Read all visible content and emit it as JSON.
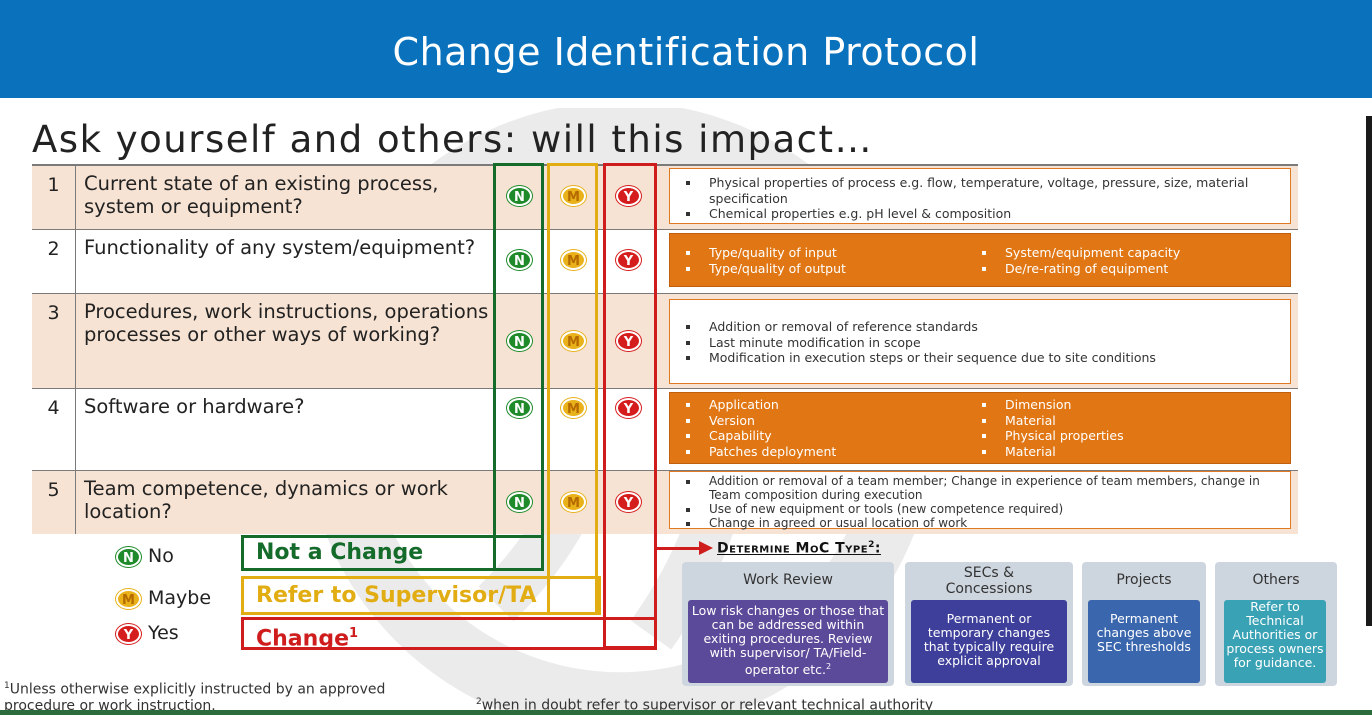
{
  "banner": {
    "title": "Change Identification Protocol"
  },
  "heading": "Ask yourself and others: will this impact…",
  "badges": {
    "n": "N",
    "m": "M",
    "y": "Y"
  },
  "rows": [
    {
      "num": "1",
      "question": "Current state of an existing process, system or equipment?",
      "bullets": [
        "Physical properties of process e.g. flow, temperature, voltage, pressure, size, material specification",
        "Chemical properties e.g. pH level & composition"
      ]
    },
    {
      "num": "2",
      "question": "Functionality of any system/equipment?",
      "bullets_left": [
        "Type/quality of input",
        "Type/quality of output"
      ],
      "bullets_right": [
        "System/equipment capacity",
        "De/re-rating of equipment"
      ]
    },
    {
      "num": "3",
      "question": "Procedures, work instructions, operations processes or other ways of working?",
      "bullets": [
        "Addition or removal of reference standards",
        "Last minute modification in scope",
        "Modification in execution steps or their sequence due to site conditions"
      ]
    },
    {
      "num": "4",
      "question": "Software or hardware?",
      "bullets_left": [
        "Application",
        "Version",
        "Capability",
        "Patches deployment"
      ],
      "bullets_right": [
        "Dimension",
        "Material",
        "Physical properties",
        "Material"
      ]
    },
    {
      "num": "5",
      "question": "Team competence, dynamics or work location?",
      "bullets": [
        "Addition or removal of a team member; Change in experience of team members, change in Team composition during execution",
        "Use of new equipment or tools (new competence required)",
        "Change in agreed or usual location of work"
      ]
    }
  ],
  "legend": {
    "no": "No",
    "maybe": "Maybe",
    "yes": "Yes"
  },
  "outcomes": {
    "no": "Not a Change",
    "maybe": "Refer to Supervisor/TA",
    "yes": "Change",
    "yes_sup": "1"
  },
  "moc": {
    "title": "Determine MoC Type",
    "title_sup": "2",
    "title_colon": ":",
    "cards": [
      {
        "header": "Work Review",
        "body": "Low risk changes or those that can be addressed within exiting procedures. Review with supervisor/ TA/Field-operator etc.",
        "body_sup": "2",
        "color": "#5b4a99"
      },
      {
        "header": "SECs & Concessions",
        "body": "Permanent or temporary changes that typically require explicit approval",
        "color": "#3d3f9a"
      },
      {
        "header": "Projects",
        "body": "Permanent changes above SEC thresholds",
        "color": "#3a66ae"
      },
      {
        "header": "Others",
        "body": "Refer to Technical Authorities or process owners for guidance.",
        "color": "#3aa2b5"
      }
    ]
  },
  "footnotes": {
    "one_sup": "1",
    "one": "Unless otherwise explicitly instructed by an approved procedure or work instruction.",
    "two_sup": "2",
    "two": "when in doubt refer to supervisor or relevant technical authority"
  },
  "colors": {
    "banner": "#0a72bd",
    "no": "#156b2a",
    "maybe": "#e2ad13",
    "yes": "#cf1c1c",
    "orange": "#e07614"
  }
}
